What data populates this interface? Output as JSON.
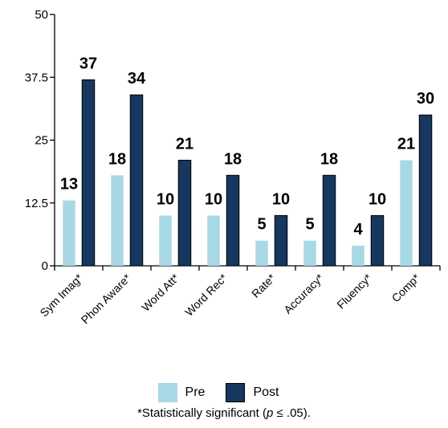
{
  "chart_data": {
    "type": "bar",
    "categories": [
      "Sym Imag*",
      "Phon Aware*",
      "Word Att*",
      "Word Rec*",
      "Rate*",
      "Accuracy*",
      "Fluency*",
      "Comp*"
    ],
    "series": [
      {
        "name": "Pre",
        "values": [
          13,
          18,
          10,
          10,
          5,
          5,
          4,
          21
        ],
        "color": "#a8d8e4"
      },
      {
        "name": "Post",
        "values": [
          37,
          34,
          21,
          18,
          10,
          18,
          10,
          30
        ],
        "color": "#17375e"
      }
    ],
    "yticks": [
      "0",
      "12.5",
      "25",
      "37.5",
      "50"
    ],
    "ylim": [
      0,
      50
    ],
    "grid": false,
    "legend_position": "bottom"
  },
  "footnote": {
    "prefix": "*Statistically significant (",
    "italic": "p",
    "suffix": " ≤ .05)."
  }
}
